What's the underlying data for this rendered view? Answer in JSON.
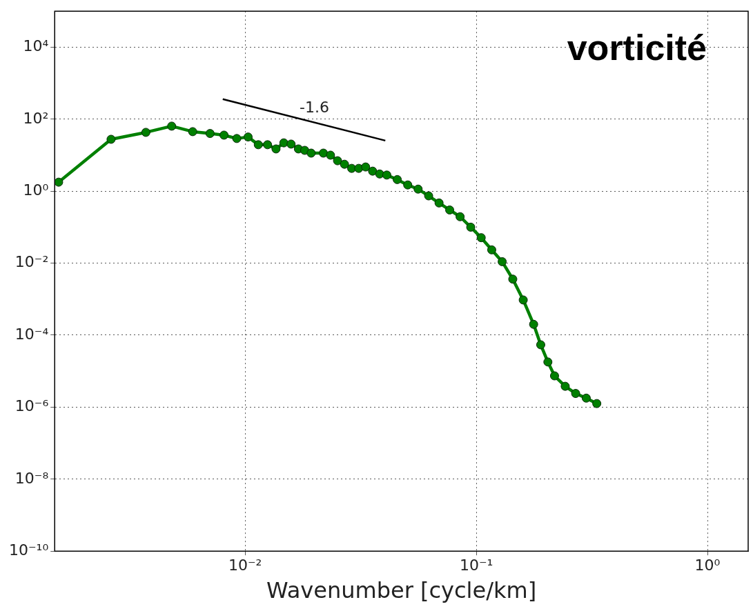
{
  "chart_data": {
    "type": "line",
    "title": "vorticité",
    "xlabel": "Wavenumber [cycle/km]",
    "log": "xy",
    "grid": true,
    "legend": false,
    "xlim": [
      0.0015,
      1.5
    ],
    "ylim": [
      1e-10,
      100000.0
    ],
    "xticks": [
      {
        "value": 0.01,
        "label": "10⁻²"
      },
      {
        "value": 0.1,
        "label": "10⁻¹"
      },
      {
        "value": 1,
        "label": "10⁰"
      }
    ],
    "yticks": [
      {
        "value": 1e-10,
        "label": "10⁻¹⁰"
      },
      {
        "value": 1e-08,
        "label": "10⁻⁸"
      },
      {
        "value": 1e-06,
        "label": "10⁻⁶"
      },
      {
        "value": 0.0001,
        "label": "10⁻⁴"
      },
      {
        "value": 0.01,
        "label": "10⁻²"
      },
      {
        "value": 1,
        "label": "10⁰"
      },
      {
        "value": 100,
        "label": "10²"
      },
      {
        "value": 10000,
        "label": "10⁴"
      }
    ],
    "series": [
      {
        "color": "#008000",
        "marker": "circle",
        "x": [
          0.00156,
          0.00263,
          0.00372,
          0.00481,
          0.00593,
          0.00705,
          0.0081,
          0.0092,
          0.0103,
          0.0114,
          0.0125,
          0.0136,
          0.0147,
          0.0158,
          0.017,
          0.0181,
          0.0193,
          0.0218,
          0.0234,
          0.0251,
          0.0269,
          0.0289,
          0.031,
          0.0332,
          0.0356,
          0.0382,
          0.041,
          0.0455,
          0.0505,
          0.056,
          0.0622,
          0.069,
          0.0767,
          0.0851,
          0.0946,
          0.105,
          0.1166,
          0.1294,
          0.1438,
          0.1596,
          0.177,
          0.19,
          0.204,
          0.218,
          0.2425,
          0.269,
          0.299,
          0.332
        ],
        "values": [
          1.78,
          27.6,
          43,
          64,
          45,
          40,
          36,
          29,
          32,
          19.5,
          19.5,
          14.9,
          22,
          20.3,
          14.9,
          13.6,
          11.4,
          11.4,
          10,
          7,
          5.6,
          4.3,
          4.3,
          4.7,
          3.6,
          3.0,
          2.8,
          2.1,
          1.49,
          1.14,
          0.74,
          0.47,
          0.3,
          0.195,
          0.1,
          0.051,
          0.0234,
          0.011,
          0.0036,
          0.00095,
          0.0002,
          5.4e-05,
          1.8e-05,
          7.4e-06,
          3.8e-06,
          2.4e-06,
          1.78e-06,
          1.26e-06
        ]
      },
      {
        "type": "line",
        "color": "#000000",
        "marker": "none",
        "x": [
          0.008,
          0.0404
        ],
        "values": [
          361,
          25.4
        ]
      }
    ],
    "annotations": [
      "-1.6"
    ]
  }
}
